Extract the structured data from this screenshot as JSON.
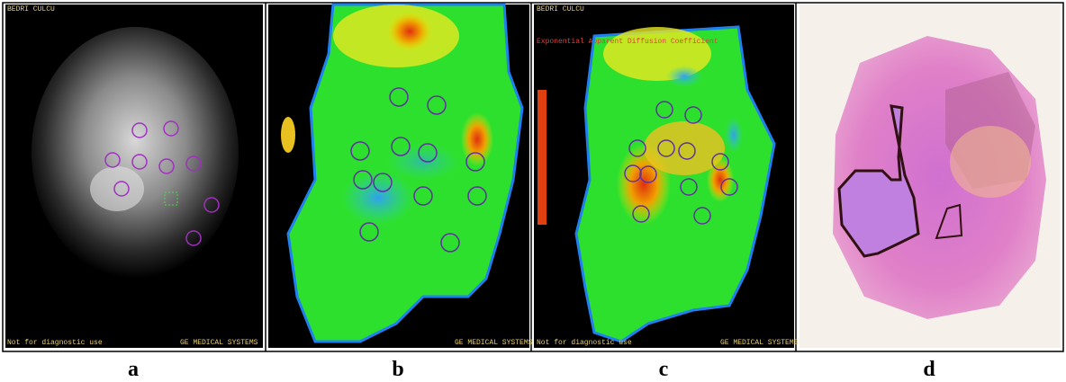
{
  "panels": [
    {
      "label": "a",
      "overlay": [
        "BEDRI CULCU",
        "Not for diagnostic use",
        "GE MEDICAL SYSTEMS"
      ]
    },
    {
      "label": "b",
      "overlay": [
        "GE MEDICAL SYSTEMS"
      ]
    },
    {
      "label": "c",
      "overlay": [
        "BEDRI CULCU",
        "Exponential Apparent Diffusion Coefficient",
        "Not for diagnostic use",
        "GE MEDICAL SYSTEMS"
      ]
    },
    {
      "label": "d"
    }
  ]
}
